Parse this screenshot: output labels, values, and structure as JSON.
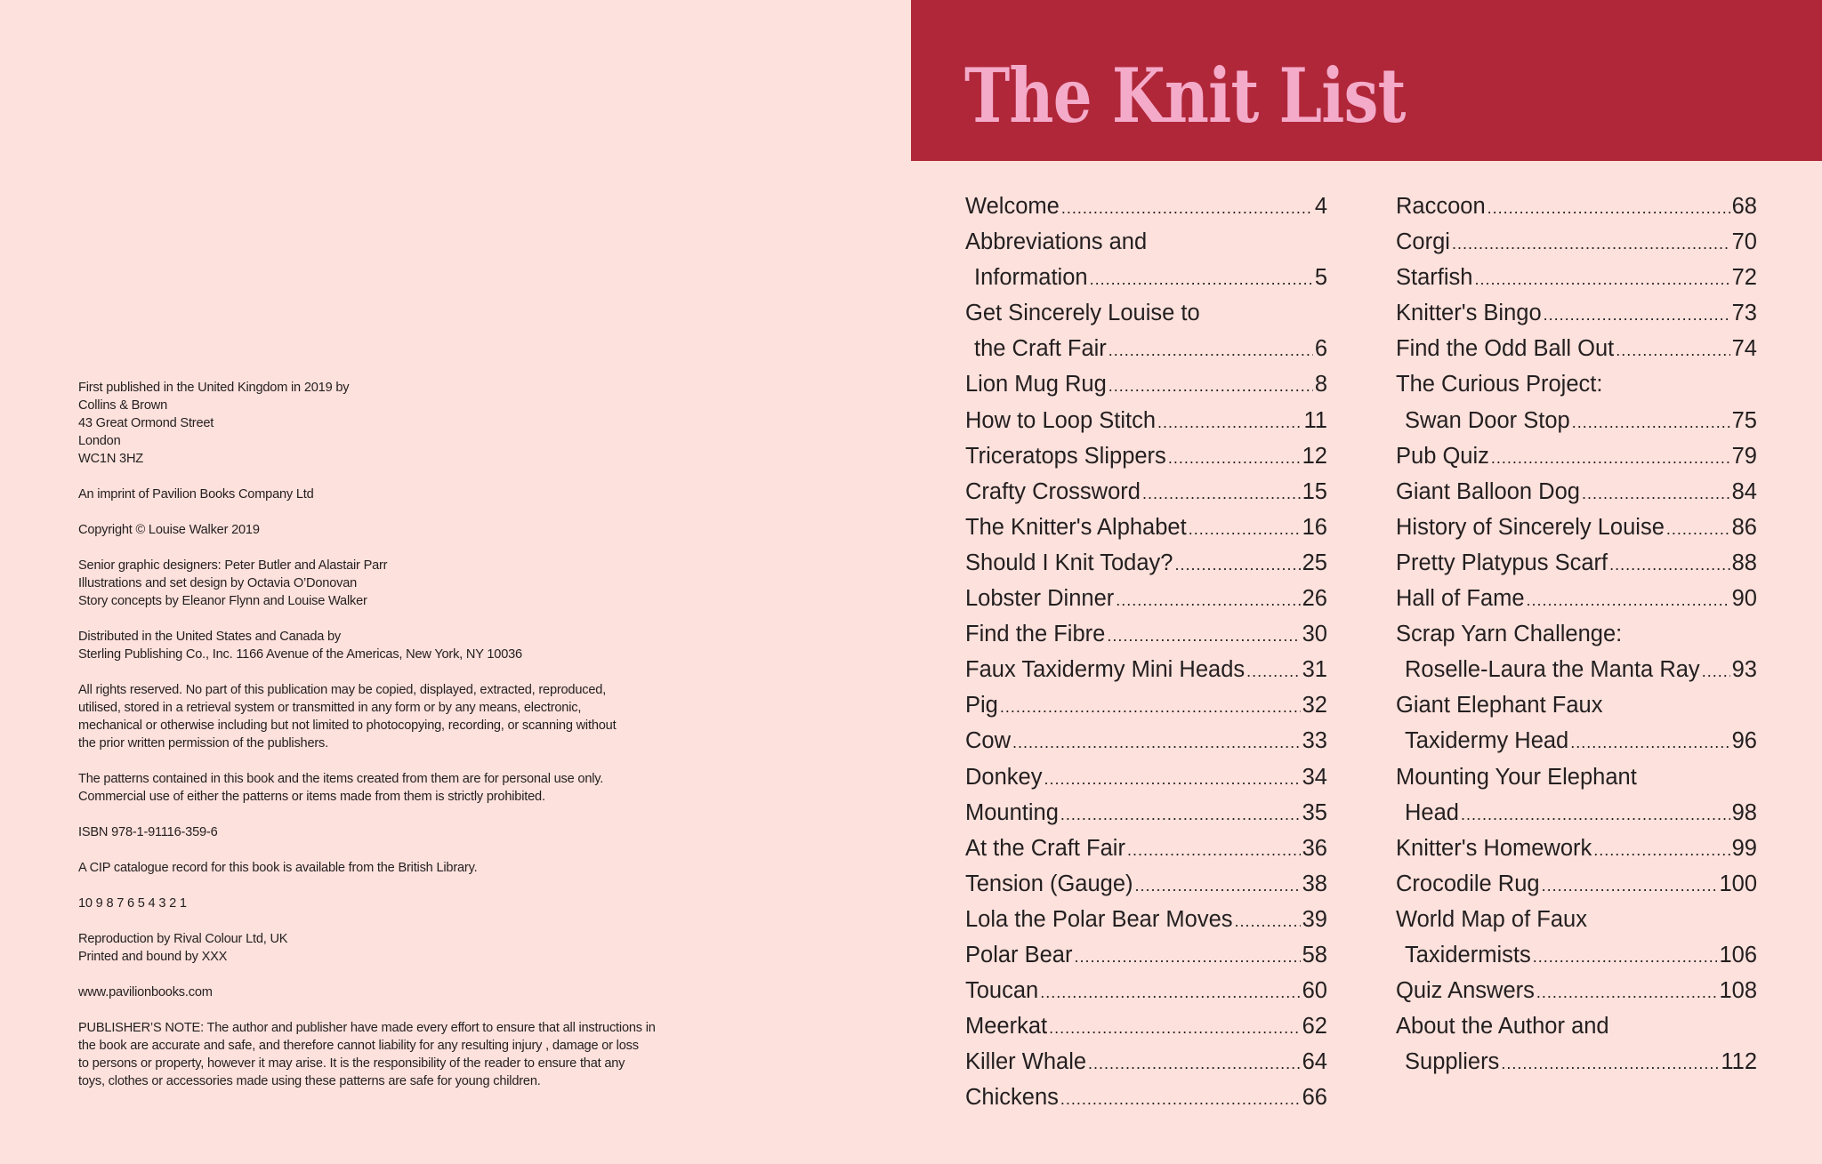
{
  "imprint": {
    "paragraphs": [
      [
        "First published in the United Kingdom in 2019 by",
        "Collins & Brown",
        "43 Great Ormond Street",
        "London",
        "WC1N 3HZ"
      ],
      [
        "An imprint of Pavilion Books Company Ltd"
      ],
      [
        "Copyright © Louise Walker 2019"
      ],
      [
        "Senior graphic designers: Peter Butler and Alastair Parr",
        "Illustrations and set design by Octavia O’Donovan",
        "Story concepts by Eleanor Flynn and Louise Walker"
      ],
      [
        "Distributed in the United States and Canada by",
        "Sterling Publishing Co., Inc. 1166 Avenue of the Americas, New York, NY 10036"
      ],
      [
        "All rights reserved. No part of this publication may be copied, displayed, extracted, reproduced,",
        "utilised, stored in a retrieval system or transmitted in any form or by any means, electronic,",
        "mechanical or otherwise including but not limited to photocopying, recording, or scanning without",
        "the prior written permission of the publishers."
      ],
      [
        "The patterns contained in this book and the items created from them are for personal use only.",
        "Commercial use of either the patterns or items made from them is strictly prohibited."
      ],
      [
        "ISBN 978-1-91116-359-6"
      ],
      [
        "A CIP catalogue record for this book is available from the British Library."
      ],
      [
        "10  9  8  7  6  5  4  3  2  1"
      ],
      [
        "Reproduction by Rival Colour Ltd, UK",
        "Printed and bound by XXX"
      ],
      [
        "www.pavilionbooks.com"
      ],
      [
        "PUBLISHER’S NOTE: The author and publisher have made every effort to ensure that all instructions in",
        "the book are accurate and safe, and therefore cannot liability for any resulting injury , damage or loss",
        "to persons or property, however it may arise. It is the responsibility of the reader to ensure that any",
        "toys, clothes or accessories made using these patterns are safe for young children."
      ]
    ]
  },
  "header": {
    "title": "The Knit List",
    "band_color": "#b0273a",
    "title_color": "#f4abc9"
  },
  "contents": {
    "left": [
      {
        "lines": [
          "Welcome"
        ],
        "page": "4"
      },
      {
        "lines": [
          "Abbreviations and",
          "Information"
        ],
        "page": "5"
      },
      {
        "lines": [
          "Get Sincerely Louise to",
          "the Craft Fair"
        ],
        "page": "6"
      },
      {
        "lines": [
          "Lion Mug Rug"
        ],
        "page": "8"
      },
      {
        "lines": [
          "How to Loop Stitch"
        ],
        "page": "11"
      },
      {
        "lines": [
          "Triceratops Slippers"
        ],
        "page": "12"
      },
      {
        "lines": [
          "Crafty Crossword"
        ],
        "page": "15"
      },
      {
        "lines": [
          "The Knitter's Alphabet"
        ],
        "page": "16"
      },
      {
        "lines": [
          "Should I Knit Today?"
        ],
        "page": "25"
      },
      {
        "lines": [
          "Lobster Dinner"
        ],
        "page": "26"
      },
      {
        "lines": [
          "Find the Fibre"
        ],
        "page": "30"
      },
      {
        "lines": [
          "Faux Taxidermy Mini Heads"
        ],
        "page": "31"
      },
      {
        "lines": [
          "Pig"
        ],
        "page": "32"
      },
      {
        "lines": [
          "Cow"
        ],
        "page": "33"
      },
      {
        "lines": [
          "Donkey"
        ],
        "page": "34"
      },
      {
        "lines": [
          "Mounting"
        ],
        "page": "35"
      },
      {
        "lines": [
          "At the Craft Fair"
        ],
        "page": "36"
      },
      {
        "lines": [
          "Tension (Gauge)"
        ],
        "page": "38"
      },
      {
        "lines": [
          "Lola the Polar Bear Moves"
        ],
        "page": "39"
      },
      {
        "lines": [
          "Polar Bear"
        ],
        "page": "58"
      },
      {
        "lines": [
          "Toucan"
        ],
        "page": "60"
      },
      {
        "lines": [
          "Meerkat"
        ],
        "page": "62"
      },
      {
        "lines": [
          "Killer Whale"
        ],
        "page": "64"
      },
      {
        "lines": [
          "Chickens"
        ],
        "page": "66"
      }
    ],
    "right": [
      {
        "lines": [
          "Raccoon"
        ],
        "page": "68"
      },
      {
        "lines": [
          "Corgi"
        ],
        "page": "70"
      },
      {
        "lines": [
          "Starfish"
        ],
        "page": "72"
      },
      {
        "lines": [
          "Knitter's Bingo"
        ],
        "page": "73"
      },
      {
        "lines": [
          "Find the Odd Ball Out"
        ],
        "page": "74"
      },
      {
        "lines": [
          "The Curious Project:",
          "Swan Door Stop"
        ],
        "page": "75"
      },
      {
        "lines": [
          "Pub Quiz"
        ],
        "page": "79"
      },
      {
        "lines": [
          "Giant Balloon Dog"
        ],
        "page": "84"
      },
      {
        "lines": [
          "History of Sincerely Louise"
        ],
        "page": "86"
      },
      {
        "lines": [
          "Pretty Platypus Scarf"
        ],
        "page": "88"
      },
      {
        "lines": [
          "Hall of Fame"
        ],
        "page": "90"
      },
      {
        "lines": [
          "Scrap Yarn Challenge:",
          "Roselle-Laura the Manta Ray"
        ],
        "page": "93"
      },
      {
        "lines": [
          "Giant Elephant Faux",
          "Taxidermy Head"
        ],
        "page": "96"
      },
      {
        "lines": [
          "Mounting Your Elephant",
          "Head"
        ],
        "page": "98"
      },
      {
        "lines": [
          "Knitter's Homework"
        ],
        "page": "99"
      },
      {
        "lines": [
          "Crocodile Rug"
        ],
        "page": "100"
      },
      {
        "lines": [
          "World Map of Faux",
          "Taxidermists"
        ],
        "page": "106"
      },
      {
        "lines": [
          "Quiz Answers"
        ],
        "page": "108"
      },
      {
        "lines": [
          "About the Author and",
          "Suppliers"
        ],
        "page": "112"
      }
    ]
  }
}
